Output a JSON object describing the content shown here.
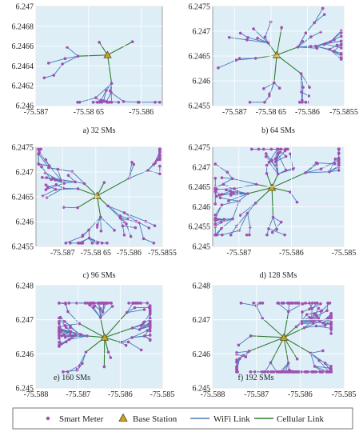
{
  "legend": {
    "smart_meter": "Smart Meter",
    "base_station": "Base Station",
    "wifi_link": "WiFi Link",
    "cellular_link": "Cellular Link"
  },
  "colors": {
    "plot_bg": "#deeef7",
    "meter": "#a14fb0",
    "wifi": "#4a78b8",
    "cellular": "#2f7d2f",
    "base_fill": "#c9a227",
    "base_stroke": "#5a4a10"
  },
  "chart_data": [
    {
      "type": "scatter",
      "caption": "a) 32 SMs",
      "num_meters": 32,
      "xlim": [
        -75.587,
        -75.5858
      ],
      "ylim": [
        6.246,
        6.247
      ],
      "xticks": [
        -75.587,
        -75.5865,
        -75.586
      ],
      "xtick_labels": [
        "-75.587",
        "-75.58 65",
        "-75.586"
      ],
      "yticks": [
        6.246,
        6.2462,
        6.2464,
        6.2466,
        6.2468,
        6.247
      ],
      "ytick_labels": [
        "6.246",
        "6.2462",
        "6.2464",
        "6.2466",
        "6.2468",
        "6.247"
      ],
      "base_station": [
        -75.58632,
        6.24651
      ],
      "seed": 11
    },
    {
      "type": "scatter",
      "caption": "b) 64 SMs",
      "num_meters": 64,
      "xlim": [
        -75.5873,
        -75.5855
      ],
      "ylim": [
        6.2455,
        6.2475
      ],
      "xticks": [
        -75.587,
        -75.5865,
        -75.586,
        -75.5855
      ],
      "xtick_labels": [
        "-75.587",
        "-75.58 65",
        "-75.586",
        "-75.5855"
      ],
      "yticks": [
        6.2455,
        6.246,
        6.2465,
        6.247,
        6.2475
      ],
      "ytick_labels": [
        "6.2455",
        "6.246",
        "6.2465",
        "6.247",
        "6.2475"
      ],
      "base_station": [
        -75.58642,
        6.24652
      ],
      "seed": 23
    },
    {
      "type": "scatter",
      "caption": "c) 96 SMs",
      "num_meters": 96,
      "xlim": [
        -75.5874,
        -75.5855
      ],
      "ylim": [
        6.2455,
        6.2475
      ],
      "xticks": [
        -75.587,
        -75.5865,
        -75.586,
        -75.5855
      ],
      "xtick_labels": [
        "-75.587",
        "-75.58 65",
        "-75.586",
        "-75.5855"
      ],
      "yticks": [
        6.2455,
        6.246,
        6.2465,
        6.247,
        6.2475
      ],
      "ytick_labels": [
        "6.2455",
        "6.246",
        "6.2465",
        "6.247",
        "6.2475"
      ],
      "base_station": [
        -75.58648,
        6.24652
      ],
      "seed": 37
    },
    {
      "type": "scatter",
      "caption": "d) 128 SMs",
      "num_meters": 128,
      "xlim": [
        -75.5875,
        -75.585
      ],
      "ylim": [
        6.245,
        6.2475
      ],
      "xticks": [
        -75.587,
        -75.586,
        -75.585
      ],
      "xtick_labels": [
        "-75.587",
        "-75.586",
        "-75.585"
      ],
      "yticks": [
        6.245,
        6.2455,
        6.246,
        6.2465,
        6.247,
        6.2475
      ],
      "ytick_labels": [
        "6.245",
        "6.2455",
        "6.246",
        "6.2465",
        "6.247",
        "6.2475"
      ],
      "base_station": [
        -75.58637,
        6.24648
      ],
      "seed": 41
    },
    {
      "type": "scatter",
      "caption": "e) 160 SMs",
      "num_meters": 160,
      "xlim": [
        -75.588,
        -75.585
      ],
      "ylim": [
        6.245,
        6.248
      ],
      "xticks": [
        -75.588,
        -75.587,
        -75.586,
        -75.585
      ],
      "xtick_labels": [
        "-75.588",
        "-75.587",
        "-75.586",
        "-75.585"
      ],
      "yticks": [
        6.245,
        6.246,
        6.247,
        6.248
      ],
      "ytick_labels": [
        "6.245",
        "6.246",
        "6.247",
        "6.248"
      ],
      "base_station": [
        -75.58637,
        6.24648
      ],
      "seed": 53
    },
    {
      "type": "scatter",
      "caption": "f) 192 SMs",
      "num_meters": 192,
      "xlim": [
        -75.588,
        -75.585
      ],
      "ylim": [
        6.245,
        6.248
      ],
      "xticks": [
        -75.588,
        -75.587,
        -75.586,
        -75.585
      ],
      "xtick_labels": [
        "-75.588",
        "-75.587",
        "-75.586",
        "-75.585"
      ],
      "yticks": [
        6.245,
        6.246,
        6.247,
        6.248
      ],
      "ytick_labels": [
        "6.245",
        "6.246",
        "6.247",
        "6.248"
      ],
      "base_station": [
        -75.58637,
        6.24648
      ],
      "seed": 67
    }
  ]
}
